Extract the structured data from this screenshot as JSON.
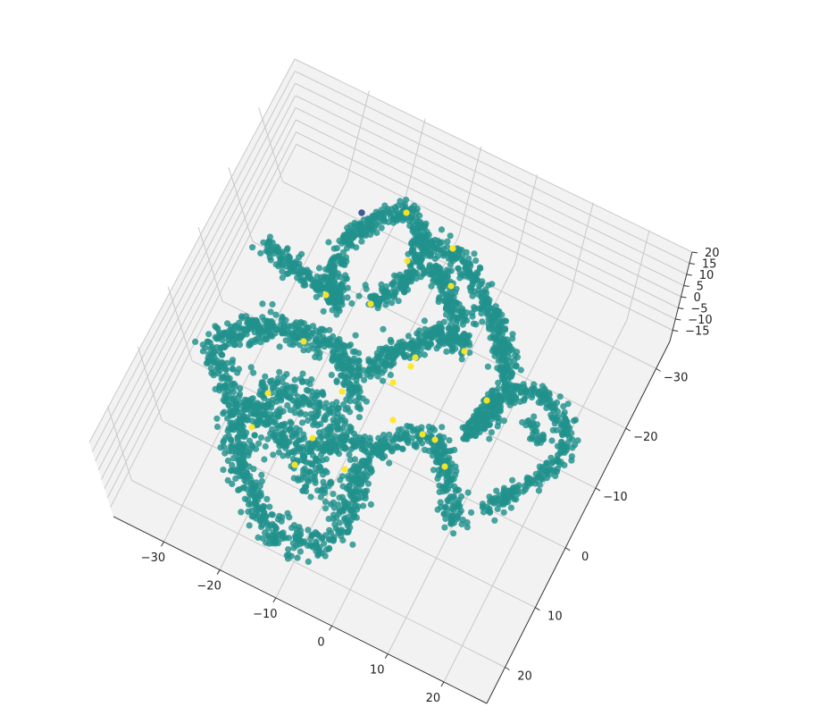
{
  "chart_data": {
    "type": "scatter",
    "projection": "3d",
    "title": "",
    "xlabel": "",
    "ylabel": "",
    "zlabel": "",
    "grid": true,
    "legend": "none",
    "x_ticks": [
      "20",
      "10",
      "0",
      "−10",
      "−20",
      "−30"
    ],
    "y_ticks": [
      "−30",
      "−20",
      "−10",
      "0",
      "10",
      "20"
    ],
    "z_ticks": [
      "20",
      "15",
      "10",
      "5",
      "0",
      "−5",
      "−10",
      "−15"
    ],
    "xlim": [
      -35,
      27
    ],
    "ylim": [
      -35,
      27
    ],
    "zlim": [
      -17,
      22
    ],
    "colors": {
      "main": "#21918c",
      "highlight": "#fde725",
      "dark": "#3b528b",
      "pane": "#f2f2f2",
      "grid": "#c8c8c8"
    },
    "highlight_count": 22,
    "dark_count": 1
  }
}
